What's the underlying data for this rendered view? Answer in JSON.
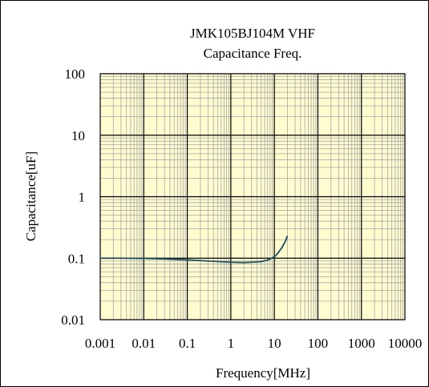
{
  "chart_data": {
    "type": "line",
    "title": "JMK105BJ104M VHF",
    "subtitle": "Capacitance Freq.",
    "xlabel": "Frequency[MHz]",
    "ylabel": "Capacitance[uF]",
    "x_scale": "log",
    "y_scale": "log",
    "xlim": [
      0.001,
      10000
    ],
    "ylim": [
      0.01,
      100
    ],
    "x_ticks": [
      "0.001",
      "0.01",
      "0.1",
      "1",
      "10",
      "100",
      "1000",
      "10000"
    ],
    "y_ticks": [
      "100",
      "10",
      "1",
      "0.1",
      "0.01"
    ],
    "grid": true,
    "background_color": "#fffccf",
    "line_color": "#1f4e5f",
    "series": [
      {
        "x": [
          0.001,
          0.003,
          0.01,
          0.03,
          0.1,
          0.3,
          1,
          2,
          3,
          5,
          7,
          10,
          12,
          15,
          18,
          20
        ],
        "y": [
          0.1,
          0.1,
          0.099,
          0.097,
          0.094,
          0.09,
          0.086,
          0.085,
          0.086,
          0.088,
          0.093,
          0.105,
          0.12,
          0.15,
          0.19,
          0.23
        ]
      }
    ]
  }
}
